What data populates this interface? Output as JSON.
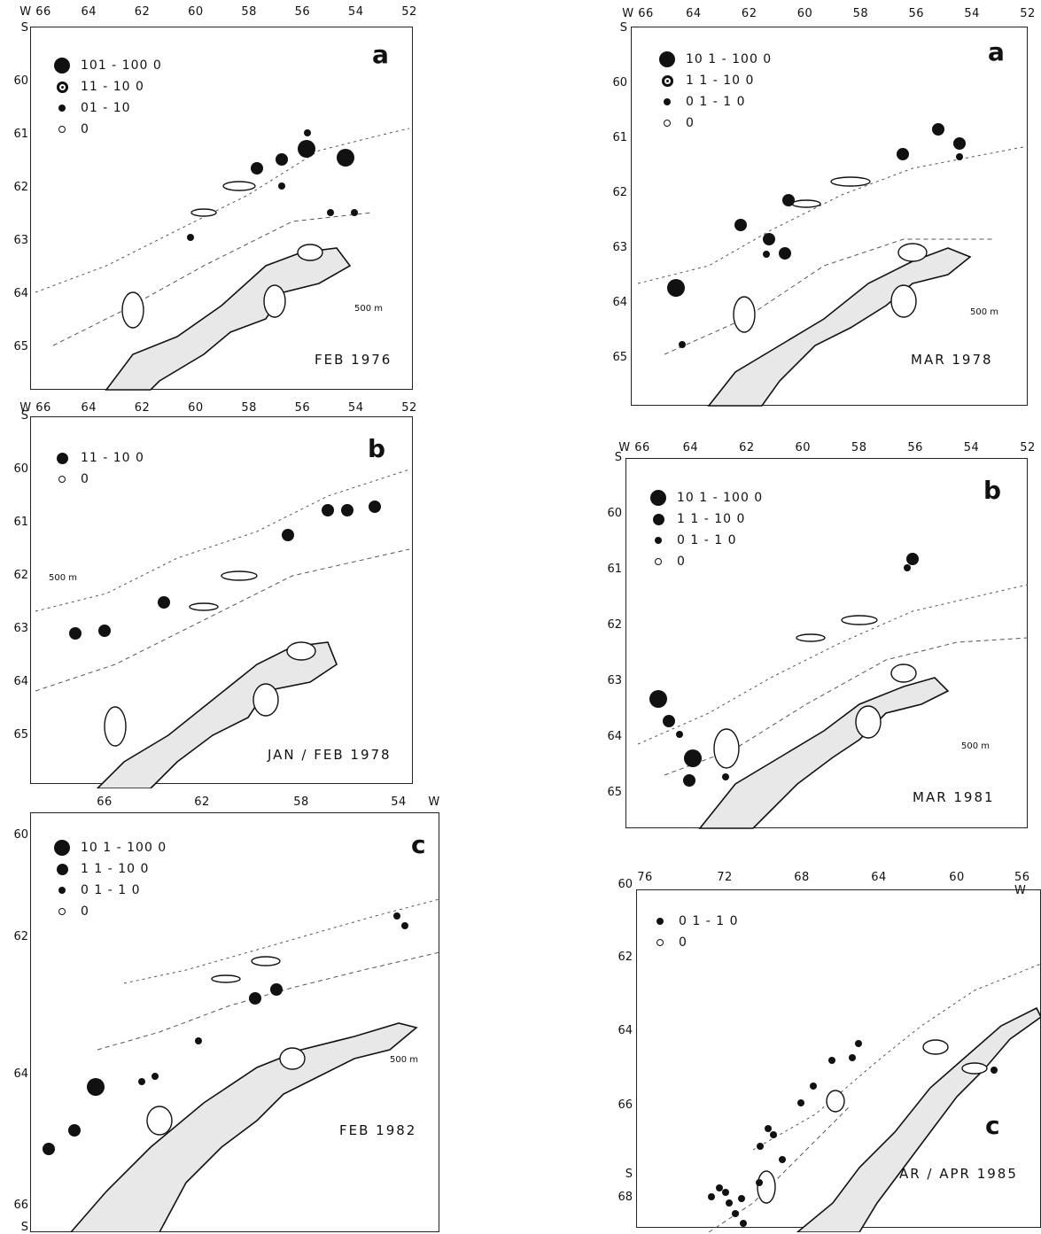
{
  "panels": [
    {
      "id": "left-a",
      "letter": "a",
      "caption": "FEB 1976",
      "top_ticks": [
        "W 66",
        "64",
        "62",
        "60",
        "58",
        "56",
        "54",
        "52"
      ],
      "left_ticks": [
        "S",
        "60",
        "61",
        "62",
        "63",
        "64",
        "65"
      ],
      "legend": [
        {
          "label": "101 - 100 0",
          "symbol": "dot-large"
        },
        {
          "label": "11 - 10 0",
          "symbol": "dot-medium-hollow"
        },
        {
          "label": "01 - 10",
          "symbol": "dot-small"
        },
        {
          "label": "0",
          "symbol": "ring"
        }
      ],
      "isobath": "500 m"
    },
    {
      "id": "left-b",
      "letter": "b",
      "caption": "JAN / FEB 1978",
      "top_ticks": [
        "W 66",
        "64",
        "62",
        "60",
        "58",
        "56",
        "54",
        "52"
      ],
      "left_ticks": [
        "S",
        "60",
        "61",
        "62",
        "63",
        "64",
        "65"
      ],
      "legend": [
        {
          "label": "11 - 10 0",
          "symbol": "dot-medium"
        },
        {
          "label": "0",
          "symbol": "ring"
        }
      ],
      "isobath": "500 m"
    },
    {
      "id": "left-c",
      "letter": "c",
      "caption": "FEB 1982",
      "top_ticks": [
        "66",
        "62",
        "58",
        "54",
        "W"
      ],
      "left_ticks": [
        "60",
        "62",
        "64",
        "66",
        "S"
      ],
      "legend": [
        {
          "label": "10 1 - 100 0",
          "symbol": "dot-large"
        },
        {
          "label": "1 1 - 10 0",
          "symbol": "dot-medium"
        },
        {
          "label": "0 1 - 1 0",
          "symbol": "dot-small"
        },
        {
          "label": "0",
          "symbol": "ring"
        }
      ],
      "isobath": "500 m"
    },
    {
      "id": "right-a",
      "letter": "a",
      "caption": "MAR 1978",
      "top_ticks": [
        "W 66",
        "64",
        "62",
        "60",
        "58",
        "56",
        "54",
        "52"
      ],
      "left_ticks": [
        "S",
        "60",
        "61",
        "62",
        "63",
        "64",
        "65"
      ],
      "legend": [
        {
          "label": "10 1 - 100 0",
          "symbol": "dot-large"
        },
        {
          "label": "1 1 - 10 0",
          "symbol": "dot-medium-hollow"
        },
        {
          "label": "0 1 - 1 0",
          "symbol": "dot-small"
        },
        {
          "label": "0",
          "symbol": "ring"
        }
      ],
      "isobath": "500 m"
    },
    {
      "id": "right-b",
      "letter": "b",
      "caption": "MAR 1981",
      "top_ticks": [
        "W 66",
        "64",
        "62",
        "60",
        "58",
        "56",
        "54",
        "52"
      ],
      "left_ticks": [
        "S",
        "60",
        "61",
        "62",
        "63",
        "64",
        "65"
      ],
      "legend": [
        {
          "label": "10 1 - 100 0",
          "symbol": "dot-large"
        },
        {
          "label": "1 1 - 10 0",
          "symbol": "dot-medium"
        },
        {
          "label": "0 1 - 1 0",
          "symbol": "dot-small"
        },
        {
          "label": "0",
          "symbol": "ring"
        }
      ],
      "isobath": "500 m"
    },
    {
      "id": "right-c",
      "letter": "c",
      "caption": "MAR / APR 1985",
      "top_ticks": [
        "76",
        "72",
        "68",
        "64",
        "60",
        "56 W"
      ],
      "left_ticks": [
        "60",
        "62",
        "64",
        "66",
        "S",
        "68"
      ],
      "legend": [
        {
          "label": "0 1 - 1 0",
          "symbol": "dot-small"
        },
        {
          "label": "0",
          "symbol": "ring"
        }
      ],
      "isobath": ""
    }
  ]
}
